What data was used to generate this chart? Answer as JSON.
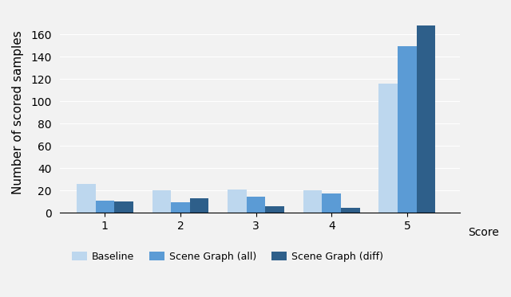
{
  "categories": [
    1,
    2,
    3,
    4,
    5
  ],
  "series": {
    "Baseline": [
      26,
      20,
      21,
      20,
      116
    ],
    "Scene Graph (all)": [
      11,
      9,
      14,
      17,
      149
    ],
    "Scene Graph (diff)": [
      10,
      13,
      6,
      4,
      168
    ]
  },
  "colors": {
    "Baseline": "#bdd7ee",
    "Scene Graph (all)": "#5b9bd5",
    "Scene Graph (diff)": "#2e5f8a"
  },
  "ylabel": "Number of scored samples",
  "xlabel": "Score",
  "ylim": [
    0,
    180
  ],
  "yticks": [
    0,
    20,
    40,
    60,
    80,
    100,
    120,
    140,
    160
  ],
  "legend_labels": [
    "Baseline",
    "Scene Graph (all)",
    "Scene Graph (diff)"
  ],
  "bar_width": 0.25,
  "background_color": "#f2f2f2",
  "title_fontsize": 11,
  "axis_fontsize": 10,
  "tick_fontsize": 10,
  "legend_fontsize": 9
}
